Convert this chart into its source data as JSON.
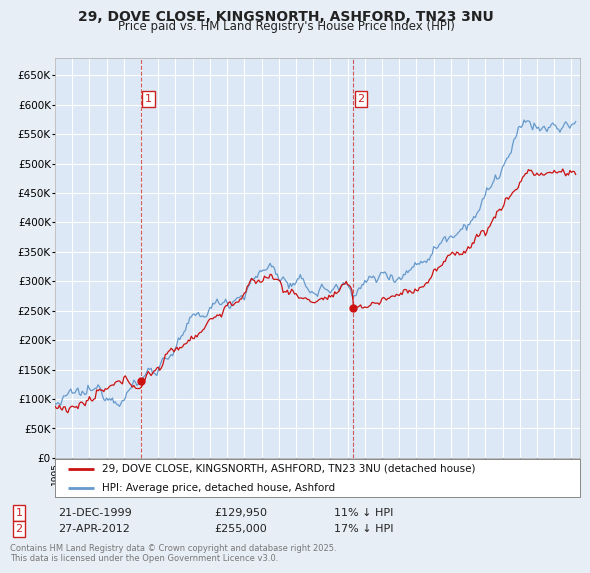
{
  "title1": "29, DOVE CLOSE, KINGSNORTH, ASHFORD, TN23 3NU",
  "title2": "Price paid vs. HM Land Registry's House Price Index (HPI)",
  "ylim": [
    0,
    680000
  ],
  "yticks": [
    0,
    50000,
    100000,
    150000,
    200000,
    250000,
    300000,
    350000,
    400000,
    450000,
    500000,
    550000,
    600000,
    650000
  ],
  "xlim_start": 1995.0,
  "xlim_end": 2025.5,
  "bg_color": "#e8eef5",
  "plot_bg": "#dce8f5",
  "grid_color": "#ffffff",
  "line_color_hpi": "#6699cc",
  "line_color_price": "#cc1111",
  "transaction1_x": 1999.97,
  "transaction1_y": 129950,
  "transaction2_x": 2012.32,
  "transaction2_y": 255000,
  "legend_line1": "29, DOVE CLOSE, KINGSNORTH, ASHFORD, TN23 3NU (detached house)",
  "legend_line2": "HPI: Average price, detached house, Ashford",
  "table_row1": [
    "1",
    "21-DEC-1999",
    "£129,950",
    "11% ↓ HPI"
  ],
  "table_row2": [
    "2",
    "27-APR-2012",
    "£255,000",
    "17% ↓ HPI"
  ],
  "footnote": "Contains HM Land Registry data © Crown copyright and database right 2025.\nThis data is licensed under the Open Government Licence v3.0."
}
